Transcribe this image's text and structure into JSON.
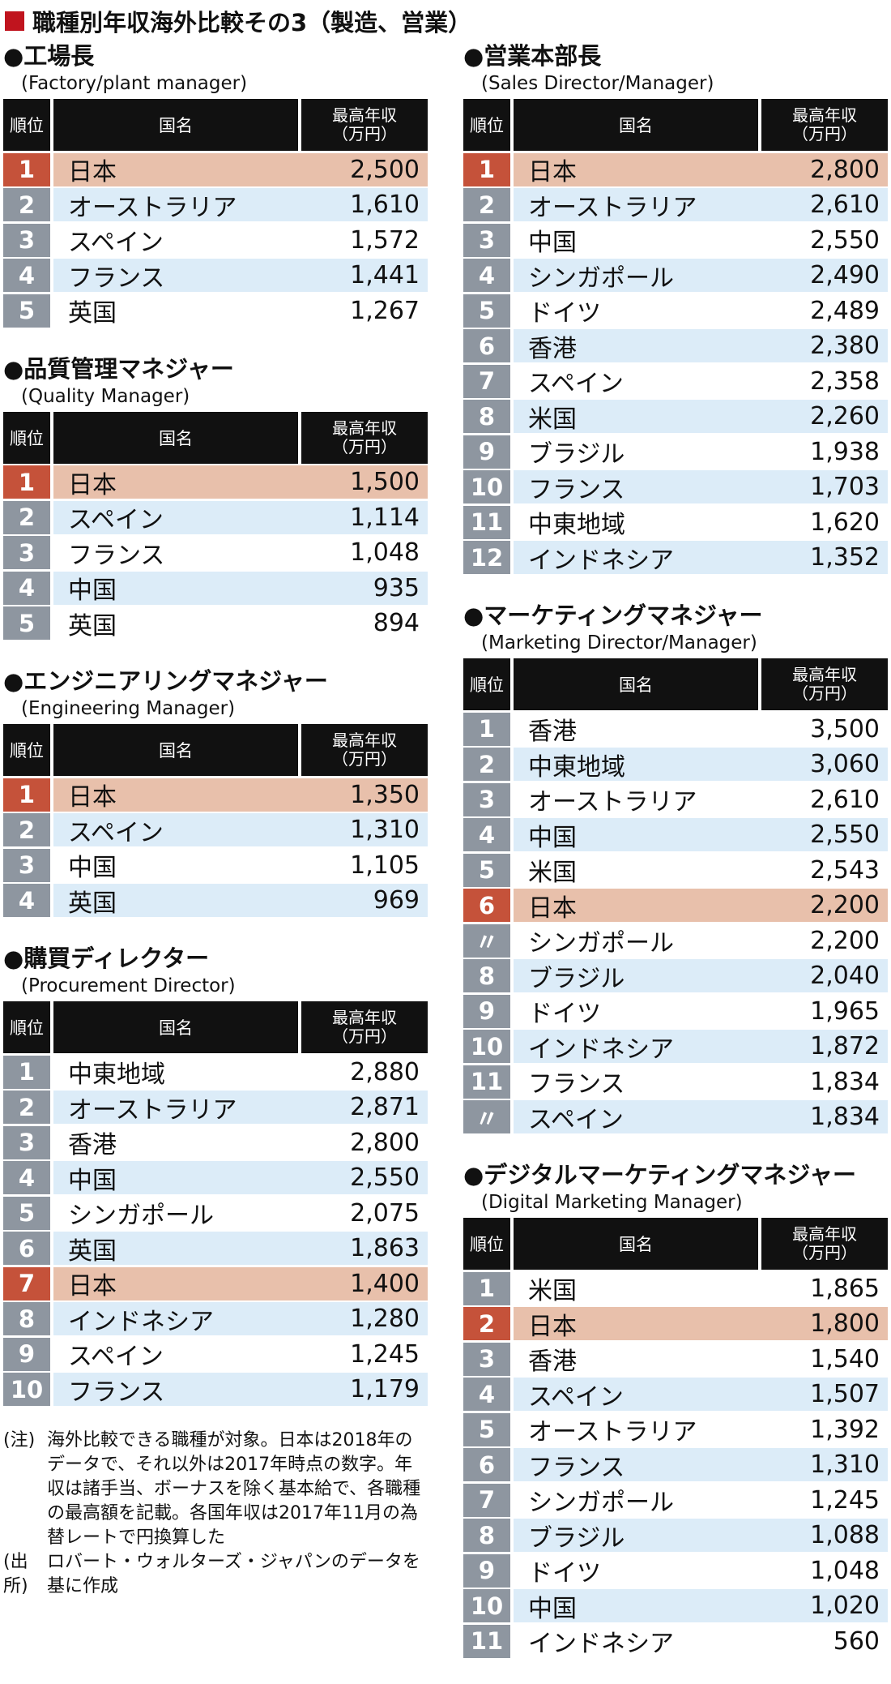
{
  "title": "職種別年収海外比較その3（製造、営業）",
  "colors": {
    "title_square": "#c0141e",
    "header_bg": "#111111",
    "rank_bg": "#8e96a0",
    "highlight_rank": "#c5523a",
    "highlight_row": "#e8c0ab",
    "stripe": "#dcecf8"
  },
  "chart_data": [
    {
      "type": "table",
      "title": "●工場長",
      "subtitle": "(Factory/plant manager)",
      "columns": [
        "順位",
        "国名",
        "最高年収",
        "（万円）"
      ],
      "rows": [
        {
          "rank": "1",
          "country": "日本",
          "salary": "2,500",
          "highlight": true
        },
        {
          "rank": "2",
          "country": "オーストラリア",
          "salary": "1,610"
        },
        {
          "rank": "3",
          "country": "スペイン",
          "salary": "1,572"
        },
        {
          "rank": "4",
          "country": "フランス",
          "salary": "1,441"
        },
        {
          "rank": "5",
          "country": "英国",
          "salary": "1,267"
        }
      ]
    },
    {
      "type": "table",
      "title": "●品質管理マネジャー",
      "subtitle": "(Quality Manager)",
      "columns": [
        "順位",
        "国名",
        "最高年収",
        "（万円）"
      ],
      "rows": [
        {
          "rank": "1",
          "country": "日本",
          "salary": "1,500",
          "highlight": true
        },
        {
          "rank": "2",
          "country": "スペイン",
          "salary": "1,114"
        },
        {
          "rank": "3",
          "country": "フランス",
          "salary": "1,048"
        },
        {
          "rank": "4",
          "country": "中国",
          "salary": "935"
        },
        {
          "rank": "5",
          "country": "英国",
          "salary": "894"
        }
      ]
    },
    {
      "type": "table",
      "title": "●エンジニアリングマネジャー",
      "subtitle": "(Engineering Manager)",
      "columns": [
        "順位",
        "国名",
        "最高年収",
        "（万円）"
      ],
      "rows": [
        {
          "rank": "1",
          "country": "日本",
          "salary": "1,350",
          "highlight": true
        },
        {
          "rank": "2",
          "country": "スペイン",
          "salary": "1,310"
        },
        {
          "rank": "3",
          "country": "中国",
          "salary": "1,105"
        },
        {
          "rank": "4",
          "country": "英国",
          "salary": "969"
        }
      ]
    },
    {
      "type": "table",
      "title": "●購買ディレクター",
      "subtitle": "(Procurement Director)",
      "columns": [
        "順位",
        "国名",
        "最高年収",
        "（万円）"
      ],
      "rows": [
        {
          "rank": "1",
          "country": "中東地域",
          "salary": "2,880"
        },
        {
          "rank": "2",
          "country": "オーストラリア",
          "salary": "2,871"
        },
        {
          "rank": "3",
          "country": "香港",
          "salary": "2,800"
        },
        {
          "rank": "4",
          "country": "中国",
          "salary": "2,550"
        },
        {
          "rank": "5",
          "country": "シンガポール",
          "salary": "2,075"
        },
        {
          "rank": "6",
          "country": "英国",
          "salary": "1,863"
        },
        {
          "rank": "7",
          "country": "日本",
          "salary": "1,400",
          "highlight": true
        },
        {
          "rank": "8",
          "country": "インドネシア",
          "salary": "1,280"
        },
        {
          "rank": "9",
          "country": "スペイン",
          "salary": "1,245"
        },
        {
          "rank": "10",
          "country": "フランス",
          "salary": "1,179"
        }
      ]
    },
    {
      "type": "table",
      "title": "●営業本部長",
      "subtitle": "(Sales Director/Manager)",
      "columns": [
        "順位",
        "国名",
        "最高年収",
        "（万円）"
      ],
      "rows": [
        {
          "rank": "1",
          "country": "日本",
          "salary": "2,800",
          "highlight": true
        },
        {
          "rank": "2",
          "country": "オーストラリア",
          "salary": "2,610"
        },
        {
          "rank": "3",
          "country": "中国",
          "salary": "2,550"
        },
        {
          "rank": "4",
          "country": "シンガポール",
          "salary": "2,490"
        },
        {
          "rank": "5",
          "country": "ドイツ",
          "salary": "2,489"
        },
        {
          "rank": "6",
          "country": "香港",
          "salary": "2,380"
        },
        {
          "rank": "7",
          "country": "スペイン",
          "salary": "2,358"
        },
        {
          "rank": "8",
          "country": "米国",
          "salary": "2,260"
        },
        {
          "rank": "9",
          "country": "ブラジル",
          "salary": "1,938"
        },
        {
          "rank": "10",
          "country": "フランス",
          "salary": "1,703"
        },
        {
          "rank": "11",
          "country": "中東地域",
          "salary": "1,620"
        },
        {
          "rank": "12",
          "country": "インドネシア",
          "salary": "1,352"
        }
      ]
    },
    {
      "type": "table",
      "title": "●マーケティングマネジャー",
      "subtitle": "(Marketing Director/Manager)",
      "columns": [
        "順位",
        "国名",
        "最高年収",
        "（万円）"
      ],
      "rows": [
        {
          "rank": "1",
          "country": "香港",
          "salary": "3,500"
        },
        {
          "rank": "2",
          "country": "中東地域",
          "salary": "3,060"
        },
        {
          "rank": "3",
          "country": "オーストラリア",
          "salary": "2,610"
        },
        {
          "rank": "4",
          "country": "中国",
          "salary": "2,550"
        },
        {
          "rank": "5",
          "country": "米国",
          "salary": "2,543"
        },
        {
          "rank": "6",
          "country": "日本",
          "salary": "2,200",
          "highlight": true
        },
        {
          "rank": "〃",
          "country": "シンガポール",
          "salary": "2,200"
        },
        {
          "rank": "8",
          "country": "ブラジル",
          "salary": "2,040"
        },
        {
          "rank": "9",
          "country": "ドイツ",
          "salary": "1,965"
        },
        {
          "rank": "10",
          "country": "インドネシア",
          "salary": "1,872"
        },
        {
          "rank": "11",
          "country": "フランス",
          "salary": "1,834"
        },
        {
          "rank": "〃",
          "country": "スペイン",
          "salary": "1,834"
        }
      ]
    },
    {
      "type": "table",
      "title": "●デジタルマーケティングマネジャー",
      "subtitle": "(Digital Marketing Manager)",
      "columns": [
        "順位",
        "国名",
        "最高年収",
        "（万円）"
      ],
      "rows": [
        {
          "rank": "1",
          "country": "米国",
          "salary": "1,865"
        },
        {
          "rank": "2",
          "country": "日本",
          "salary": "1,800",
          "highlight": true
        },
        {
          "rank": "3",
          "country": "香港",
          "salary": "1,540"
        },
        {
          "rank": "4",
          "country": "スペイン",
          "salary": "1,507"
        },
        {
          "rank": "5",
          "country": "オーストラリア",
          "salary": "1,392"
        },
        {
          "rank": "6",
          "country": "フランス",
          "salary": "1,310"
        },
        {
          "rank": "7",
          "country": "シンガポール",
          "salary": "1,245"
        },
        {
          "rank": "8",
          "country": "ブラジル",
          "salary": "1,088"
        },
        {
          "rank": "9",
          "country": "ドイツ",
          "salary": "1,048"
        },
        {
          "rank": "10",
          "country": "中国",
          "salary": "1,020"
        },
        {
          "rank": "11",
          "country": "インドネシア",
          "salary": "560"
        }
      ]
    }
  ],
  "notes": [
    {
      "label": "(注)",
      "text": "海外比較できる職種が対象。日本は2018年のデータで、それ以外は2017年時点の数字。年収は諸手当、ボーナスを除く基本給で、各職種の最高額を記載。各国年収は2017年11月の為替レートで円換算した"
    },
    {
      "label": "(出所)",
      "text": "ロバート・ウォルターズ・ジャパンのデータを基に作成"
    }
  ]
}
